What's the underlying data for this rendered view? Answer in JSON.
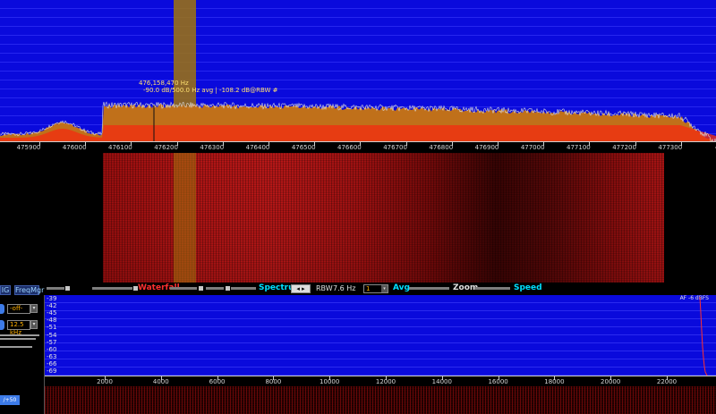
{
  "spectrum": {
    "cursor_freq": "476,158,470 Hz",
    "cursor_info": "-90.0 dB/500.0 Hz avg | -108.2 dB@RBW #",
    "freq_ticks": [
      "475900",
      "476000",
      "476100",
      "476200",
      "476300",
      "476400",
      "476500",
      "476600",
      "476700",
      "476800",
      "476900",
      "477000",
      "477100",
      "477200",
      "477300",
      "477"
    ]
  },
  "controls": {
    "waterfall_label": "Waterfall",
    "spectrum_label": "Spectrum",
    "rbw_label": "RBW",
    "rbw_value": "7.6 Hz",
    "avg_value": "1",
    "avg_label": "Avg",
    "zoom_label": "Zoom",
    "speed_label": "Speed",
    "left_tab": "IG",
    "freqmgr_button": "FreqMgr"
  },
  "left_panel": {
    "agc_value": "-off-",
    "bandwidth_value": "12.5 kHz",
    "bottom_button": "/+50"
  },
  "af_spectrum": {
    "label": "AF -6 dBFS",
    "db_ticks": [
      "-39",
      "-42",
      "-45",
      "-48",
      "-51",
      "-54",
      "-57",
      "-60",
      "-63",
      "-66",
      "-69"
    ],
    "freq_ticks": [
      "2000",
      "4000",
      "6000",
      "8000",
      "10000",
      "12000",
      "14000",
      "16000",
      "18000",
      "20000",
      "22000"
    ]
  },
  "colors": {
    "spectrum_bg": "#0a0adc",
    "signal_fill": "#c0701a",
    "highlight_fill": "#f03010",
    "cursor_band": "#a0740c",
    "label_yellow": "#ffe070",
    "accent_cyan": "#00e0ff",
    "accent_red": "#ff3030"
  }
}
